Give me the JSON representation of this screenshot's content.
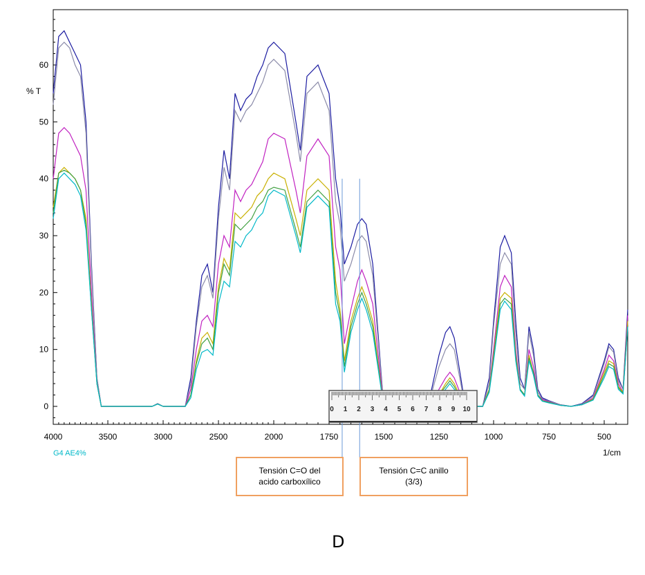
{
  "panel_label": "D",
  "chart_data": {
    "type": "line",
    "title": "",
    "xlabel": "1/cm",
    "ylabel": "% T",
    "xlim": [
      4000,
      400
    ],
    "ylim": [
      -3,
      70
    ],
    "x_ticks": [
      4000,
      3500,
      3000,
      2500,
      2000,
      1750,
      1500,
      1250,
      1000,
      750,
      500
    ],
    "x_tick_labels": [
      "4000",
      "3500",
      "3000",
      "2500",
      "2000",
      "1750",
      "1500",
      "1250",
      "1000",
      "750",
      "500"
    ],
    "y_ticks": [
      0,
      10,
      20,
      30,
      40,
      50,
      60
    ],
    "y_tick_labels": [
      "0",
      "10",
      "20",
      "30",
      "40",
      "50",
      "60"
    ],
    "grid": false,
    "legend_text": "G4 AE4%",
    "series": [
      {
        "color": "#1a1aa0",
        "x": [
          4000,
          3950,
          3900,
          3850,
          3800,
          3750,
          3700,
          3650,
          3600,
          3560,
          3500,
          3100,
          3050,
          3000,
          2800,
          2750,
          2700,
          2650,
          2600,
          2550,
          2500,
          2450,
          2400,
          2350,
          2300,
          2250,
          2200,
          2150,
          2100,
          2050,
          2000,
          1950,
          1900,
          1880,
          1850,
          1800,
          1750,
          1720,
          1700,
          1680,
          1650,
          1620,
          1600,
          1580,
          1550,
          1500,
          1300,
          1250,
          1220,
          1200,
          1180,
          1150,
          1130,
          1100,
          1050,
          1020,
          1000,
          970,
          950,
          920,
          900,
          880,
          860,
          840,
          820,
          800,
          780,
          750,
          700,
          650,
          600,
          550,
          500,
          480,
          460,
          440,
          420,
          400
        ],
        "y": [
          55,
          65,
          66,
          64,
          62,
          60,
          50,
          25,
          5,
          0,
          0,
          0,
          0.5,
          0,
          0,
          5,
          15,
          23,
          25,
          20,
          35,
          45,
          40,
          55,
          52,
          54,
          55,
          58,
          60,
          63,
          64,
          62,
          50,
          45,
          58,
          60,
          55,
          40,
          35,
          25,
          28,
          32,
          33,
          32,
          25,
          0,
          0,
          9,
          13,
          14,
          12,
          5,
          0,
          0,
          0,
          5,
          15,
          28,
          30,
          27,
          15,
          5,
          3,
          14,
          10,
          3,
          1.5,
          1,
          0.3,
          0,
          0.5,
          2,
          8,
          11,
          10,
          5,
          3,
          17
        ]
      },
      {
        "color": "#8a8aa8",
        "x": [
          4000,
          3950,
          3900,
          3850,
          3800,
          3750,
          3700,
          3650,
          3600,
          3560,
          3500,
          3100,
          3050,
          3000,
          2800,
          2750,
          2700,
          2650,
          2600,
          2550,
          2500,
          2450,
          2400,
          2350,
          2300,
          2250,
          2200,
          2150,
          2100,
          2050,
          2000,
          1950,
          1900,
          1880,
          1850,
          1800,
          1750,
          1720,
          1700,
          1680,
          1650,
          1620,
          1600,
          1580,
          1550,
          1500,
          1300,
          1250,
          1220,
          1200,
          1180,
          1150,
          1130,
          1100,
          1050,
          1020,
          1000,
          970,
          950,
          920,
          900,
          880,
          860,
          840,
          820,
          800,
          780,
          750,
          700,
          650,
          600,
          550,
          500,
          480,
          460,
          440,
          420,
          400
        ],
        "y": [
          53,
          63,
          64,
          63,
          60,
          58,
          48,
          24,
          5,
          0,
          0,
          0,
          0.5,
          0,
          0,
          4,
          14,
          21,
          23,
          19,
          33,
          42,
          38,
          52,
          50,
          52,
          53,
          55,
          57,
          60,
          61,
          59,
          48,
          43,
          55,
          57,
          52,
          36,
          32,
          22,
          25,
          29,
          30,
          29,
          23,
          0,
          0,
          7,
          10,
          11,
          10,
          4,
          0,
          0,
          0,
          4,
          14,
          25,
          27,
          25,
          13,
          4,
          3,
          13,
          9,
          2.5,
          1.3,
          0.9,
          0.3,
          0,
          0.4,
          1.8,
          7.5,
          10.5,
          9.5,
          4.5,
          3,
          15
        ]
      },
      {
        "color": "#c020c0",
        "x": [
          4000,
          3950,
          3900,
          3850,
          3800,
          3750,
          3700,
          3650,
          3600,
          3560,
          3500,
          3100,
          3050,
          3000,
          2800,
          2750,
          2700,
          2650,
          2600,
          2550,
          2500,
          2450,
          2400,
          2350,
          2300,
          2250,
          2200,
          2150,
          2100,
          2050,
          2000,
          1950,
          1900,
          1880,
          1850,
          1800,
          1750,
          1720,
          1700,
          1680,
          1650,
          1620,
          1600,
          1580,
          1550,
          1500,
          1300,
          1250,
          1220,
          1200,
          1180,
          1150,
          1130,
          1100,
          1050,
          1020,
          1000,
          970,
          950,
          920,
          900,
          880,
          860,
          840,
          820,
          800,
          780,
          750,
          700,
          650,
          600,
          550,
          500,
          480,
          460,
          440,
          420,
          400
        ],
        "y": [
          40,
          48,
          49,
          48,
          46,
          44,
          38,
          20,
          4,
          0,
          0,
          0,
          0.4,
          0,
          0,
          3,
          10,
          15,
          16,
          14,
          25,
          30,
          28,
          38,
          36,
          38,
          39,
          41,
          43,
          47,
          48,
          47,
          38,
          34,
          44,
          47,
          44,
          28,
          24,
          11,
          17,
          22,
          24,
          22,
          18,
          0,
          0,
          3,
          5,
          6,
          5,
          2,
          0,
          0,
          0,
          3,
          10,
          21,
          23,
          21,
          10,
          3,
          2,
          10,
          7,
          2,
          1.2,
          0.8,
          0.2,
          0,
          0.3,
          1.5,
          6.5,
          9,
          8,
          4,
          2.5,
          16
        ]
      },
      {
        "color": "#c8b000",
        "x": [
          4000,
          3950,
          3900,
          3850,
          3800,
          3750,
          3700,
          3650,
          3600,
          3560,
          3500,
          3100,
          3050,
          3000,
          2800,
          2750,
          2700,
          2650,
          2600,
          2550,
          2500,
          2450,
          2400,
          2350,
          2300,
          2250,
          2200,
          2150,
          2100,
          2050,
          2000,
          1950,
          1900,
          1880,
          1850,
          1800,
          1750,
          1720,
          1700,
          1680,
          1650,
          1620,
          1600,
          1580,
          1550,
          1500,
          1300,
          1250,
          1220,
          1200,
          1180,
          1150,
          1130,
          1100,
          1050,
          1020,
          1000,
          970,
          950,
          920,
          900,
          880,
          860,
          840,
          820,
          800,
          780,
          750,
          700,
          650,
          600,
          550,
          500,
          480,
          460,
          440,
          420,
          400
        ],
        "y": [
          35,
          41,
          42,
          41,
          40,
          38,
          33,
          18,
          4,
          0,
          0,
          0,
          0.4,
          0,
          0,
          2,
          8,
          12,
          13,
          11,
          21,
          26,
          24,
          34,
          33,
          34,
          35,
          37,
          38,
          40,
          41,
          40,
          33,
          30,
          38,
          40,
          38,
          22,
          17,
          8,
          15,
          19,
          21,
          19,
          15,
          0,
          0,
          2,
          4,
          5,
          4,
          1.5,
          0,
          0,
          0,
          3,
          9,
          19,
          20,
          19,
          9,
          3,
          2,
          9,
          6,
          2,
          1,
          0.7,
          0.2,
          0,
          0.3,
          1.3,
          6,
          8,
          7.5,
          3.5,
          2.5,
          15
        ]
      },
      {
        "color": "#40a040",
        "x": [
          4000,
          3950,
          3900,
          3850,
          3800,
          3750,
          3700,
          3650,
          3600,
          3560,
          3500,
          3100,
          3050,
          3000,
          2800,
          2750,
          2700,
          2650,
          2600,
          2550,
          2500,
          2450,
          2400,
          2350,
          2300,
          2250,
          2200,
          2150,
          2100,
          2050,
          2000,
          1950,
          1900,
          1880,
          1850,
          1800,
          1750,
          1720,
          1700,
          1680,
          1650,
          1620,
          1600,
          1580,
          1550,
          1500,
          1300,
          1250,
          1220,
          1200,
          1180,
          1150,
          1130,
          1100,
          1050,
          1020,
          1000,
          970,
          950,
          920,
          900,
          880,
          860,
          840,
          820,
          800,
          780,
          750,
          700,
          650,
          600,
          550,
          500,
          480,
          460,
          440,
          420,
          400
        ],
        "y": [
          34,
          41,
          41.5,
          41,
          40,
          38,
          32,
          17,
          4,
          0,
          0,
          0,
          0.4,
          0,
          0,
          2,
          7.5,
          11,
          12,
          10,
          20,
          25,
          23,
          32,
          31,
          32,
          33,
          35,
          36,
          38,
          38.5,
          38,
          31,
          28,
          36,
          38,
          36,
          20,
          16,
          7,
          14,
          18,
          20,
          18,
          14,
          0,
          0,
          2,
          3.5,
          4.5,
          3.5,
          1.2,
          0,
          0,
          0,
          2.8,
          8.5,
          18,
          19,
          18,
          8.5,
          3,
          2,
          8.5,
          6,
          2,
          1,
          0.7,
          0.2,
          0,
          0.3,
          1.2,
          5.5,
          7.5,
          7,
          3.3,
          2.3,
          14
        ]
      },
      {
        "color": "#00b8c8",
        "x": [
          4000,
          3950,
          3900,
          3850,
          3800,
          3750,
          3700,
          3650,
          3600,
          3560,
          3500,
          3100,
          3050,
          3000,
          2800,
          2750,
          2700,
          2650,
          2600,
          2550,
          2500,
          2450,
          2400,
          2350,
          2300,
          2250,
          2200,
          2150,
          2100,
          2050,
          2000,
          1950,
          1900,
          1880,
          1850,
          1800,
          1750,
          1720,
          1700,
          1680,
          1650,
          1620,
          1600,
          1580,
          1550,
          1500,
          1300,
          1250,
          1220,
          1200,
          1180,
          1150,
          1130,
          1100,
          1050,
          1020,
          1000,
          970,
          950,
          920,
          900,
          880,
          860,
          840,
          820,
          800,
          780,
          750,
          700,
          650,
          600,
          550,
          500,
          480,
          460,
          440,
          420,
          400
        ],
        "y": [
          33,
          40,
          41,
          40,
          39,
          37,
          31,
          17,
          4,
          0,
          0,
          0,
          0.4,
          0,
          0,
          1.5,
          6.5,
          9.5,
          10,
          9,
          18,
          22,
          21,
          29,
          28,
          30,
          31,
          33,
          34,
          37,
          38,
          37,
          30,
          27,
          35,
          37,
          35,
          18,
          15,
          6,
          13,
          17,
          19,
          17,
          13,
          0,
          0,
          1.5,
          3,
          4,
          3,
          1,
          0,
          0,
          0,
          2.5,
          8,
          17,
          18.5,
          17,
          8,
          2.8,
          1.8,
          8,
          5.5,
          1.8,
          0.9,
          0.6,
          0.2,
          0,
          0.3,
          1.1,
          5,
          7,
          6.5,
          3,
          2.2,
          14
        ]
      }
    ],
    "annotations": [
      {
        "text_line1": "Tensión  C=O del",
        "text_line2": "acido carboxílico",
        "x": 1690
      },
      {
        "text_line1": "Tensión C=C  anillo",
        "text_line2": "(3/3)",
        "x": 1610
      }
    ],
    "ruler": {
      "labels": [
        "0",
        "1",
        "2",
        "3",
        "4",
        "5",
        "6",
        "7",
        "8",
        "9",
        "10"
      ]
    }
  }
}
